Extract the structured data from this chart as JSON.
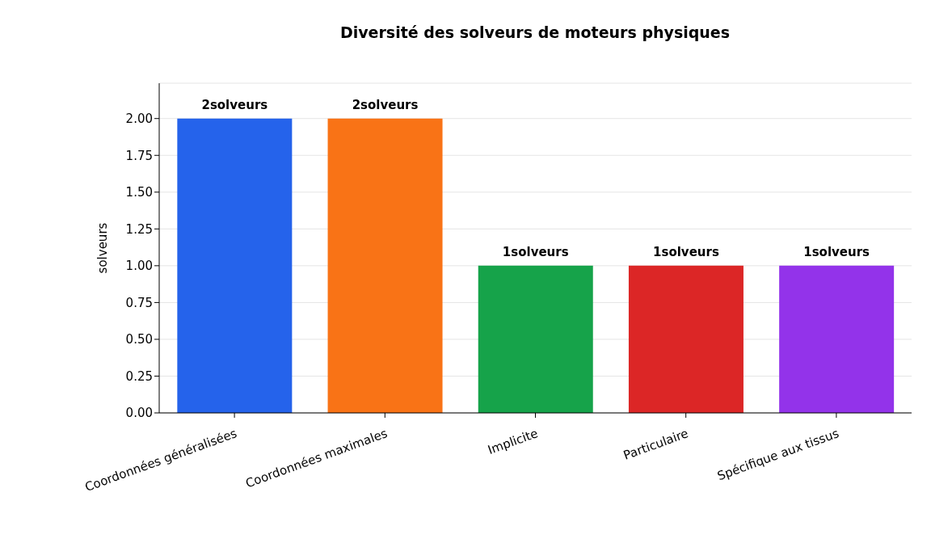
{
  "chart_data": {
    "type": "bar",
    "title": "Diversité des solveurs de moteurs physiques",
    "ylabel": "solveurs",
    "categories": [
      "Coordonnées généralisées",
      "Coordonnées maximales",
      "Implicite",
      "Particulaire",
      "Spécifique aux tissus"
    ],
    "values": [
      2,
      2,
      1,
      1,
      1
    ],
    "colors": [
      "#2563eb",
      "#f97316",
      "#16a34a",
      "#dc2626",
      "#9333ea"
    ],
    "value_labels": [
      "2solveurs",
      "2solveurs",
      "1solveurs",
      "1solveurs",
      "1solveurs"
    ],
    "ylim": [
      0,
      2.24
    ],
    "yticks": [
      {
        "value": 0,
        "label": "0.00"
      },
      {
        "value": 0.25,
        "label": "0.25"
      },
      {
        "value": 0.5,
        "label": "0.50"
      },
      {
        "value": 0.75,
        "label": "0.75"
      },
      {
        "value": 1,
        "label": "1.00"
      },
      {
        "value": 1.25,
        "label": "1.25"
      },
      {
        "value": 1.5,
        "label": "1.50"
      },
      {
        "value": 1.75,
        "label": "1.75"
      },
      {
        "value": 2,
        "label": "2.00"
      }
    ],
    "grid": "y",
    "legend": false
  }
}
